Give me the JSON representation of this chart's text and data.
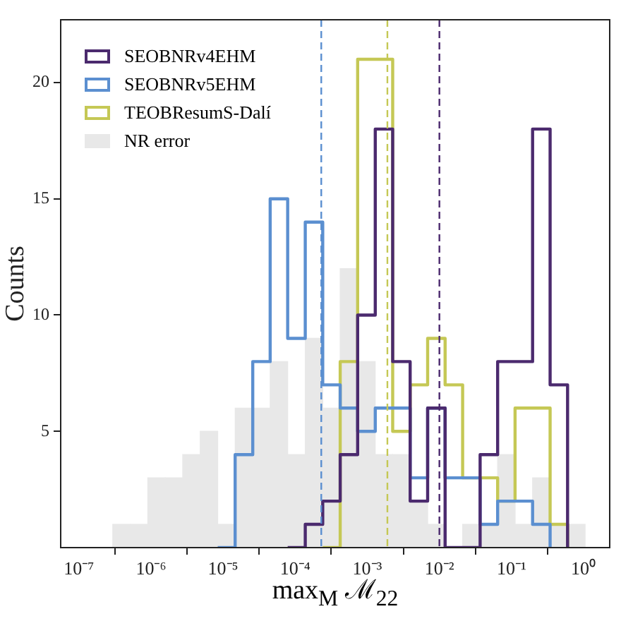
{
  "chart_data": {
    "type": "histogram",
    "xlabel": "max$_{M}$ ℳ$_{22}$",
    "ylabel": "Counts",
    "log": "x",
    "bins": [
      2.95e-07,
      5.16e-07,
      9.02e-07,
      1.58e-06,
      2.76e-06,
      4.82e-06,
      8.43e-06,
      1.47e-05,
      2.58e-05,
      4.5e-05,
      7.87e-05,
      0.000138,
      0.000241,
      0.000421,
      0.000735,
      0.00129,
      0.00225,
      0.00393,
      0.00687,
      0.012,
      0.021,
      0.0367,
      0.0642,
      0.112,
      0.196,
      0.343,
      0.599,
      1.05
    ],
    "series": [
      {
        "name": "SEOBNRv4EHM",
        "type": "step",
        "color": "#4b2a6e",
        "x": [
          7.87e-05,
          0.000138,
          0.000241,
          0.000421,
          0.000735,
          0.00129,
          0.00225,
          0.00393,
          0.00687,
          0.012,
          0.021,
          0.0367,
          0.0642,
          0.112,
          0.196,
          0.343,
          0.599
        ],
        "values": [
          0,
          1,
          2,
          4,
          10,
          18,
          8,
          2,
          6,
          0,
          0,
          4,
          8,
          8,
          18,
          7,
          0
        ]
      },
      {
        "name": "SEOBNRv5EHM",
        "type": "step",
        "color": "#5b8fd0",
        "x": [
          8.43e-06,
          1.47e-05,
          2.58e-05,
          4.5e-05,
          7.87e-05,
          0.000138,
          0.000241,
          0.000421,
          0.000735,
          0.00129,
          0.00225,
          0.00393,
          0.00687,
          0.012,
          0.021,
          0.0367,
          0.0642,
          0.112,
          0.196,
          0.343
        ],
        "values": [
          0,
          4,
          8,
          15,
          9,
          14,
          7,
          6,
          5,
          6,
          6,
          3,
          6,
          3,
          3,
          1,
          2,
          2,
          1,
          0
        ]
      },
      {
        "name": "TEOBResumS-Dalí",
        "type": "step",
        "color": "#c5c855",
        "x": [
          0.000241,
          0.000421,
          0.000735,
          0.00129,
          0.00225,
          0.00393,
          0.00687,
          0.012,
          0.021,
          0.0367,
          0.0642,
          0.112,
          0.196,
          0.343,
          0.599
        ],
        "values": [
          0,
          8,
          21,
          21,
          5,
          7,
          9,
          7,
          3,
          3,
          2,
          6,
          6,
          1,
          0
        ]
      },
      {
        "name": "NR error",
        "color": "#e8e8e8",
        "values": [
          1,
          1,
          3,
          3,
          4,
          5,
          1,
          6,
          6,
          8,
          4,
          9,
          6,
          12,
          8,
          4,
          4,
          2,
          1,
          0,
          1,
          1,
          4,
          1,
          3,
          1,
          1
        ]
      }
    ],
    "xlim": [
      5.6e-08,
      2.3
    ],
    "xticks": [
      {
        "value": 1e-07,
        "label": "10⁻⁷"
      },
      {
        "value": 1e-06,
        "label": "10⁻⁶"
      },
      {
        "value": 1e-05,
        "label": "10⁻⁵"
      },
      {
        "value": 0.0001,
        "label": "10⁻⁴"
      },
      {
        "value": 0.001,
        "label": "10⁻³"
      },
      {
        "value": 0.01,
        "label": "10⁻²"
      },
      {
        "value": 0.1,
        "label": "10⁻¹"
      },
      {
        "value": 1,
        "label": "10⁰"
      }
    ],
    "ylim": [
      0,
      22.7
    ],
    "yticks": [
      5,
      10,
      15,
      20
    ],
    "ref_lines": [
      {
        "axis": "x",
        "value": 0.00023,
        "color": "#5b8fd0",
        "line_style": "dashed"
      },
      {
        "axis": "x",
        "value": 0.0019,
        "color": "#c5c855",
        "line_style": "dashed"
      },
      {
        "axis": "x",
        "value": 0.01,
        "color": "#4b2a6e",
        "line_style": "dashed"
      }
    ],
    "legend": "top left"
  }
}
